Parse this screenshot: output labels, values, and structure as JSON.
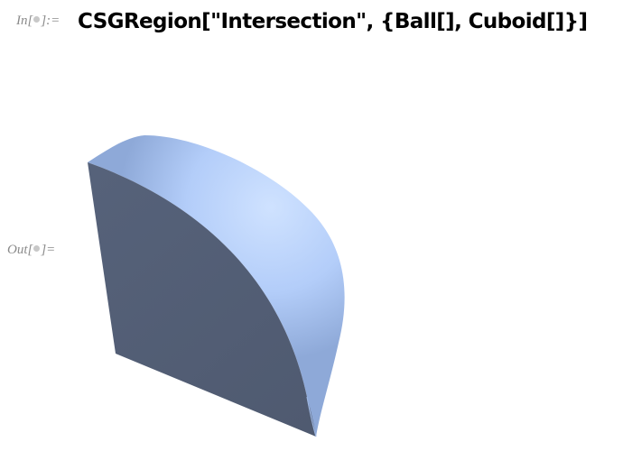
{
  "input_cell": {
    "label_prefix": "In[",
    "label_suffix": "]:=",
    "code": "CSGRegion[\"Intersection\", {Ball[], Cuboid[]}]"
  },
  "output_cell": {
    "label_prefix": "Out[",
    "label_suffix": "]=",
    "graphic": {
      "kind": "3D region (quarter ball section)",
      "face_color": "#5a6478",
      "sphere_color": "#b8d2ff"
    }
  }
}
